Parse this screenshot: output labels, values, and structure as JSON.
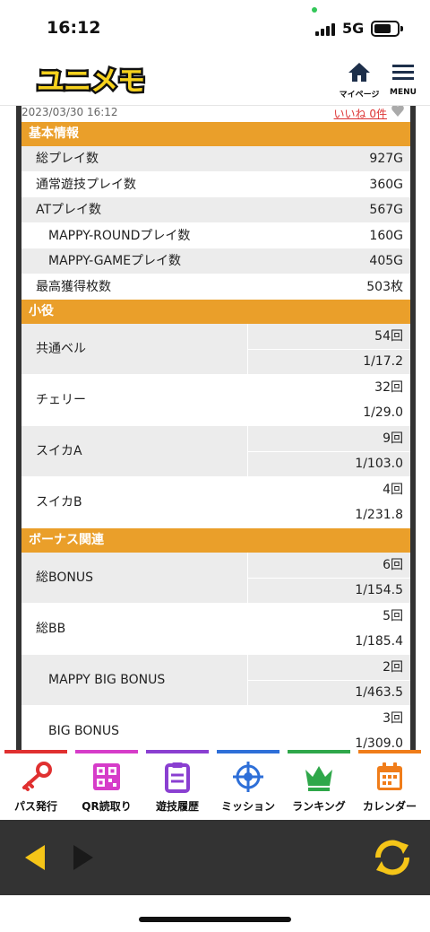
{
  "status_bar": {
    "time": "16:12",
    "network": "5G"
  },
  "header": {
    "logo_text": "ユニメモ",
    "mypage_label": "マイページ",
    "menu_label": "MENU"
  },
  "record": {
    "date": "2023/03/30 16:12",
    "like": "いいね 0件"
  },
  "sections": {
    "basic": {
      "title": "基本情報",
      "rows": [
        {
          "label": "総プレイ数",
          "value": "927G"
        },
        {
          "label": "通常遊技プレイ数",
          "value": "360G"
        },
        {
          "label": "ATプレイ数",
          "value": "567G"
        },
        {
          "label": "MAPPY-ROUNDプレイ数",
          "value": "160G"
        },
        {
          "label": "MAPPY-GAMEプレイ数",
          "value": "405G"
        },
        {
          "label": "最高獲得枚数",
          "value": "503枚"
        }
      ]
    },
    "koyaku": {
      "title": "小役",
      "rows": [
        {
          "label": "共通ベル",
          "count": "54回",
          "rate": "1/17.2"
        },
        {
          "label": "チェリー",
          "count": "32回",
          "rate": "1/29.0"
        },
        {
          "label": "スイカA",
          "count": "9回",
          "rate": "1/103.0"
        },
        {
          "label": "スイカB",
          "count": "4回",
          "rate": "1/231.8"
        }
      ]
    },
    "bonus": {
      "title": "ボーナス関連",
      "rows": [
        {
          "label": "総BONUS",
          "count": "6回",
          "rate": "1/154.5"
        },
        {
          "label": "総BB",
          "count": "5回",
          "rate": "1/185.4"
        },
        {
          "label": "MAPPY BIG BONUS",
          "count": "2回",
          "rate": "1/463.5"
        },
        {
          "label": "BIG BONUS",
          "count": "3回",
          "rate": "1/309.0"
        }
      ]
    }
  },
  "bottom_nav": [
    {
      "label": "パス発行",
      "icon": "key-icon",
      "color": "#e03030"
    },
    {
      "label": "QR読取り",
      "icon": "qr-icon",
      "color": "#d63cc9"
    },
    {
      "label": "遊技履歴",
      "icon": "clipboard-icon",
      "color": "#8a3fd1"
    },
    {
      "label": "ミッション",
      "icon": "target-icon",
      "color": "#2e6fd8"
    },
    {
      "label": "ランキング",
      "icon": "crown-icon",
      "color": "#2fa74a"
    },
    {
      "label": "カレンダー",
      "icon": "calendar-icon",
      "color": "#f07d1a"
    }
  ],
  "colors": {
    "accent": "#ea9f2a",
    "logo_yellow": "#f7d21d",
    "toolbar": "#333333"
  }
}
